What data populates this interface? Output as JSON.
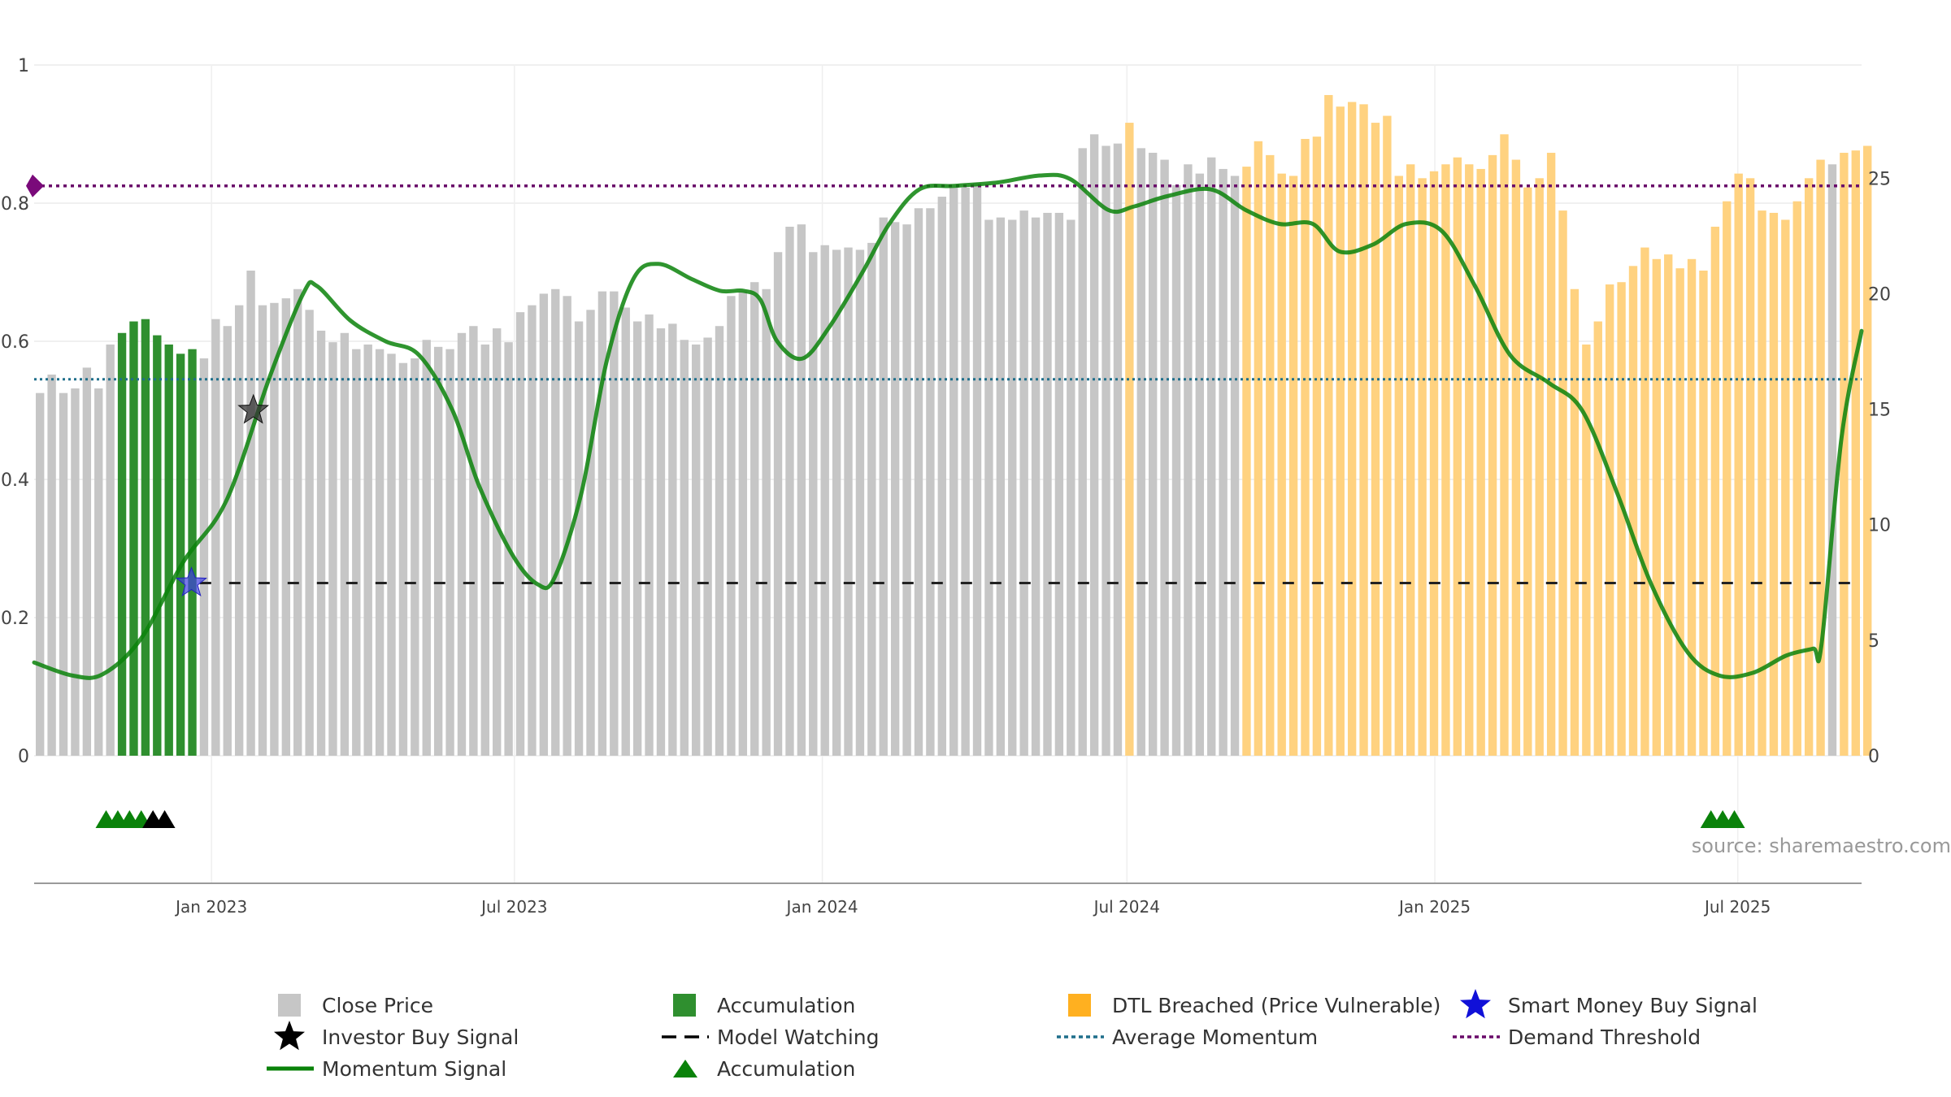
{
  "chart_data": {
    "type": "bar",
    "x_ticks": [
      "Jan 2023",
      "Jul 2023",
      "Jan 2024",
      "Jul 2024",
      "Jan 2025",
      "Jul 2025"
    ],
    "x_tick_dates": [
      "2023-01-01",
      "2023-07-01",
      "2024-01-01",
      "2024-07-01",
      "2025-01-01",
      "2025-07-01"
    ],
    "x_range": [
      "2022-09-17",
      "2025-09-13"
    ],
    "left_axis": {
      "ticks": [
        "0",
        "0.2",
        "0.4",
        "0.6",
        "0.8",
        "1"
      ],
      "range": [
        0,
        1
      ]
    },
    "right_axis": {
      "ticks": [
        "0",
        "5",
        "10",
        "15",
        "20",
        "25"
      ],
      "range": [
        0,
        29.9
      ]
    },
    "grid": true,
    "close_price": {
      "start_date": "2022-09-17",
      "interval_days": 7,
      "values": [
        15.7,
        16.5,
        15.7,
        15.9,
        16.8,
        15.9,
        17.8,
        18.3,
        18.8,
        18.9,
        18.2,
        17.8,
        17.4,
        17.6,
        17.2,
        18.9,
        18.6,
        19.5,
        21.0,
        19.5,
        19.6,
        19.8,
        20.2,
        19.3,
        18.4,
        17.9,
        18.3,
        17.6,
        17.8,
        17.6,
        17.4,
        17.0,
        17.2,
        18.0,
        17.7,
        17.6,
        18.3,
        18.6,
        17.8,
        18.5,
        17.9,
        19.2,
        19.5,
        20.0,
        20.2,
        19.9,
        18.8,
        19.3,
        20.1,
        20.1,
        19.4,
        18.8,
        19.1,
        18.5,
        18.7,
        18.0,
        17.8,
        18.1,
        18.6,
        19.9,
        20.1,
        20.5,
        20.2,
        21.8,
        22.9,
        23.0,
        21.8,
        22.1,
        21.9,
        22.0,
        21.9,
        22.2,
        23.3,
        23.1,
        23.0,
        23.7,
        23.7,
        24.2,
        24.6,
        24.6,
        24.8,
        23.2,
        23.3,
        23.2,
        23.6,
        23.3,
        23.5,
        23.5,
        23.2,
        26.3,
        26.9,
        26.4,
        26.5,
        27.4,
        26.3,
        26.1,
        25.8,
        24.7,
        25.6,
        25.2,
        25.9,
        25.4,
        25.1,
        25.5,
        26.6,
        26.0,
        25.2,
        25.1,
        26.7,
        26.8,
        28.6,
        28.1,
        28.3,
        28.2,
        27.4,
        27.7,
        25.1,
        25.6,
        25.0,
        25.3,
        25.6,
        25.9,
        25.6,
        25.4,
        26.0,
        26.9,
        25.8,
        24.6,
        25.0,
        26.1,
        23.6,
        20.2,
        17.8,
        18.8,
        20.4,
        20.5,
        21.2,
        22.0,
        21.5,
        21.7,
        21.1,
        21.5,
        21.0,
        22.9,
        24.0,
        25.2,
        25.0,
        23.6,
        23.5,
        23.2,
        24.0,
        25.0,
        25.8,
        25.6,
        26.1,
        26.2,
        26.4
      ],
      "highlight": {
        "accumulation": [
          7,
          8,
          9,
          10,
          11,
          12,
          13,
          165,
          166,
          167,
          168
        ],
        "dtl_breached": [
          93,
          103,
          104,
          105,
          106,
          107,
          108,
          109,
          110,
          111,
          112,
          113,
          114,
          115,
          116,
          117,
          118,
          119,
          120,
          121,
          122,
          123,
          124,
          125,
          126,
          127,
          128,
          129,
          130,
          131,
          132,
          133,
          134,
          135,
          136,
          137,
          138,
          139,
          140,
          141,
          142,
          143,
          144,
          145,
          146,
          147,
          148,
          149,
          150,
          151,
          152,
          154,
          155,
          156,
          157,
          158,
          159,
          170,
          171,
          178,
          179,
          180,
          181,
          182,
          183
        ]
      }
    },
    "momentum_signal": {
      "points": [
        [
          "2022-09-17",
          0.135
        ],
        [
          "2022-10-10",
          0.116
        ],
        [
          "2022-10-28",
          0.118
        ],
        [
          "2022-11-20",
          0.17
        ],
        [
          "2022-12-15",
          0.28
        ],
        [
          "2023-01-10",
          0.37
        ],
        [
          "2023-02-05",
          0.55
        ],
        [
          "2023-02-25",
          0.67
        ],
        [
          "2023-03-05",
          0.68
        ],
        [
          "2023-03-25",
          0.63
        ],
        [
          "2023-04-15",
          0.6
        ],
        [
          "2023-05-05",
          0.58
        ],
        [
          "2023-05-25",
          0.5
        ],
        [
          "2023-06-10",
          0.39
        ],
        [
          "2023-06-30",
          0.29
        ],
        [
          "2023-07-15",
          0.248
        ],
        [
          "2023-07-25",
          0.258
        ],
        [
          "2023-08-10",
          0.38
        ],
        [
          "2023-08-25",
          0.57
        ],
        [
          "2023-09-10",
          0.69
        ],
        [
          "2023-09-25",
          0.712
        ],
        [
          "2023-10-15",
          0.69
        ],
        [
          "2023-11-01",
          0.673
        ],
        [
          "2023-11-15",
          0.673
        ],
        [
          "2023-11-25",
          0.66
        ],
        [
          "2023-12-05",
          0.6
        ],
        [
          "2023-12-20",
          0.575
        ],
        [
          "2024-01-05",
          0.62
        ],
        [
          "2024-01-25",
          0.7
        ],
        [
          "2024-02-10",
          0.77
        ],
        [
          "2024-02-28",
          0.82
        ],
        [
          "2024-03-20",
          0.825
        ],
        [
          "2024-04-15",
          0.83
        ],
        [
          "2024-05-10",
          0.84
        ],
        [
          "2024-05-28",
          0.835
        ],
        [
          "2024-06-20",
          0.79
        ],
        [
          "2024-07-05",
          0.795
        ],
        [
          "2024-07-25",
          0.81
        ],
        [
          "2024-08-20",
          0.82
        ],
        [
          "2024-09-10",
          0.79
        ],
        [
          "2024-09-30",
          0.77
        ],
        [
          "2024-10-20",
          0.77
        ],
        [
          "2024-11-05",
          0.73
        ],
        [
          "2024-11-25",
          0.74
        ],
        [
          "2024-12-15",
          0.77
        ],
        [
          "2025-01-05",
          0.76
        ],
        [
          "2025-01-25",
          0.68
        ],
        [
          "2025-02-15",
          0.58
        ],
        [
          "2025-03-10",
          0.54
        ],
        [
          "2025-03-30",
          0.5
        ],
        [
          "2025-04-20",
          0.38
        ],
        [
          "2025-05-10",
          0.25
        ],
        [
          "2025-06-01",
          0.15
        ],
        [
          "2025-06-20",
          0.116
        ],
        [
          "2025-07-10",
          0.12
        ],
        [
          "2025-07-30",
          0.145
        ],
        [
          "2025-08-15",
          0.155
        ],
        [
          "2025-08-20",
          0.16
        ],
        [
          "2025-09-01",
          0.46
        ],
        [
          "2025-09-13",
          0.615
        ]
      ]
    },
    "model_watching_level": 0.25,
    "model_watching_start": "2022-12-25",
    "average_momentum": 0.545,
    "demand_threshold": 0.825,
    "investor_buy_signals": [
      {
        "date": "2023-01-26",
        "value": 0.5
      }
    ],
    "smart_money_buy_signals": [
      {
        "date": "2022-12-20",
        "value": 0.25
      }
    ],
    "accumulation_markers": [
      {
        "date": "2022-10-30",
        "kind": "accumulation"
      },
      {
        "date": "2022-11-06",
        "kind": "accumulation"
      },
      {
        "date": "2022-11-13",
        "kind": "accumulation"
      },
      {
        "date": "2022-11-20",
        "kind": "accumulation"
      },
      {
        "date": "2022-11-27",
        "kind": "watching"
      },
      {
        "date": "2022-12-04",
        "kind": "watching"
      },
      {
        "date": "2025-06-15",
        "kind": "accumulation"
      },
      {
        "date": "2025-06-22",
        "kind": "accumulation"
      },
      {
        "date": "2025-06-29",
        "kind": "accumulation"
      }
    ],
    "legend": [
      {
        "label": "Close Price",
        "symbol": "grey-square"
      },
      {
        "label": "Accumulation",
        "symbol": "green-square"
      },
      {
        "label": "DTL Breached (Price Vulnerable)",
        "symbol": "orange-square"
      },
      {
        "label": "Smart Money Buy Signal",
        "symbol": "blue-star"
      },
      {
        "label": "Investor Buy Signal",
        "symbol": "black-star"
      },
      {
        "label": "Model Watching",
        "symbol": "black-dash"
      },
      {
        "label": "Average Momentum",
        "symbol": "blue-dotted"
      },
      {
        "label": "Demand Threshold",
        "symbol": "purple-dotted"
      },
      {
        "label": "Momentum Signal",
        "symbol": "green-line"
      },
      {
        "label": "Accumulation",
        "symbol": "green-triangle"
      }
    ],
    "source": "source: sharemaestro.com"
  },
  "colors": {
    "close_price": "#c6c6c6",
    "accumulation": "#2f8f2f",
    "dtl_breached": "#ffd280",
    "momentum": "#0a820a",
    "model_watching": "#000000",
    "average_momentum": "#1f6f8b",
    "demand_threshold": "#6a0a6a",
    "smart_money_star": "#1010d8",
    "investor_star": "#000000",
    "triangle_green": "#0a820a",
    "triangle_black": "#000000"
  }
}
